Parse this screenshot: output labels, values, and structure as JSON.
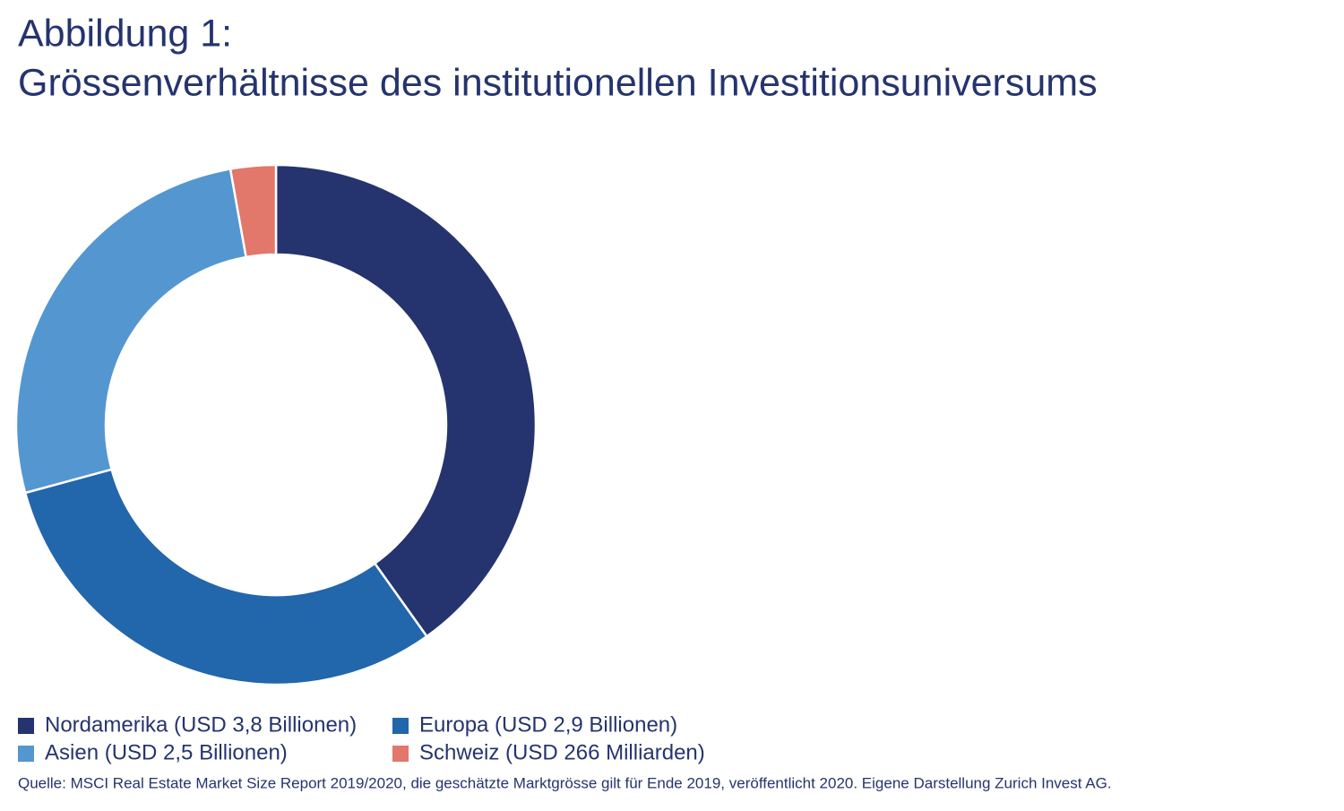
{
  "chart_data": {
    "type": "donut",
    "title": "Abbildung 1:",
    "subtitle": "Grössenverhältnisse des institutionellen Investitionsuniversums",
    "categories": [
      "Nordamerika (USD 3,8 Billionen)",
      "Europa (USD 2,9 Billionen)",
      "Asien (USD 2,5 Billionen)",
      "Schweiz (USD 266 Milliarden)"
    ],
    "values": [
      3.8,
      2.9,
      2.5,
      0.266
    ],
    "colors": [
      "#25346e",
      "#2266ab",
      "#5496d0",
      "#e2776b"
    ],
    "source": "Quelle: MSCI Real Estate Market Size Report 2019/2020, die geschätzte Marktgrösse gilt für Ende 2019, veröffentlicht 2020. Eigene Darstellung Zurich Invest AG."
  }
}
